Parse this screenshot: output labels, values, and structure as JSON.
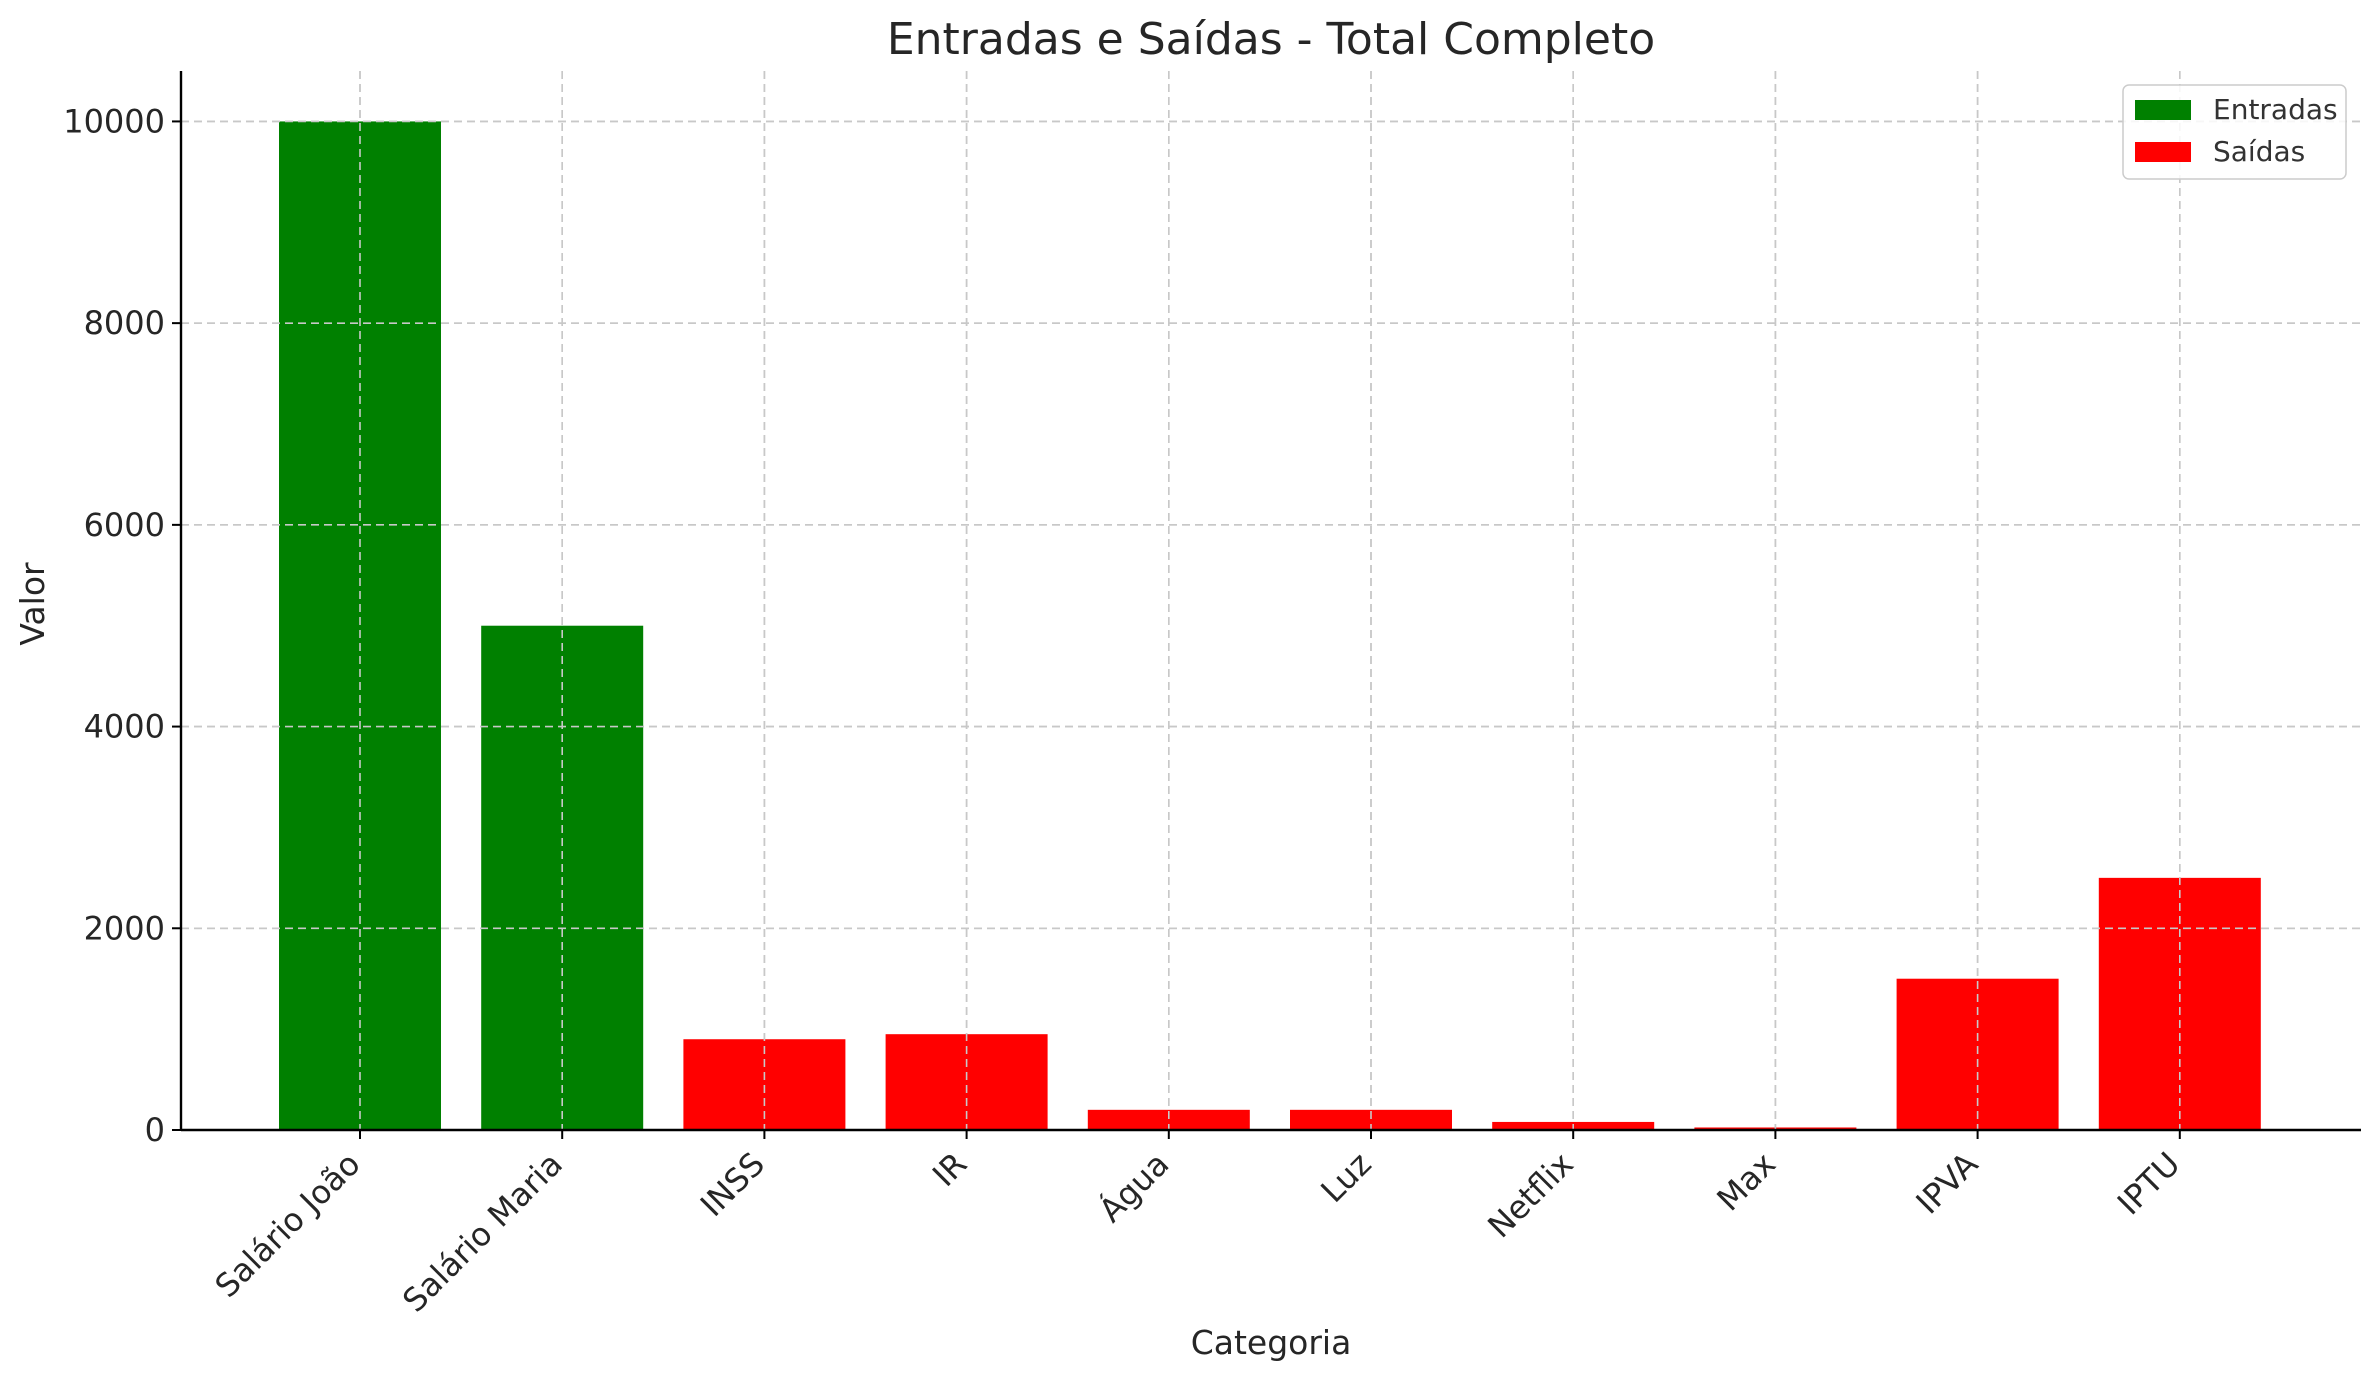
{
  "chart_data": {
    "type": "bar",
    "title": "Entradas e Saídas - Total Completo",
    "xlabel": "Categoria",
    "ylabel": "Valor",
    "ylim": [
      0,
      10500
    ],
    "yticks": [
      0,
      2000,
      4000,
      6000,
      8000,
      10000
    ],
    "grid": true,
    "legend_position": "top-right",
    "categories": [
      "Salário João",
      "Salário Maria",
      "INSS",
      "IR",
      "Água",
      "Luz",
      "Netflix",
      "Max",
      "IPVA",
      "IPTU"
    ],
    "series": [
      {
        "name": "Entradas",
        "color": "#008000",
        "values": [
          10000,
          5000,
          null,
          null,
          null,
          null,
          null,
          null,
          null,
          null
        ]
      },
      {
        "name": "Saídas",
        "color": "#ff0000",
        "values": [
          null,
          null,
          900,
          950,
          200,
          200,
          80,
          25,
          1500,
          2500
        ]
      }
    ]
  }
}
